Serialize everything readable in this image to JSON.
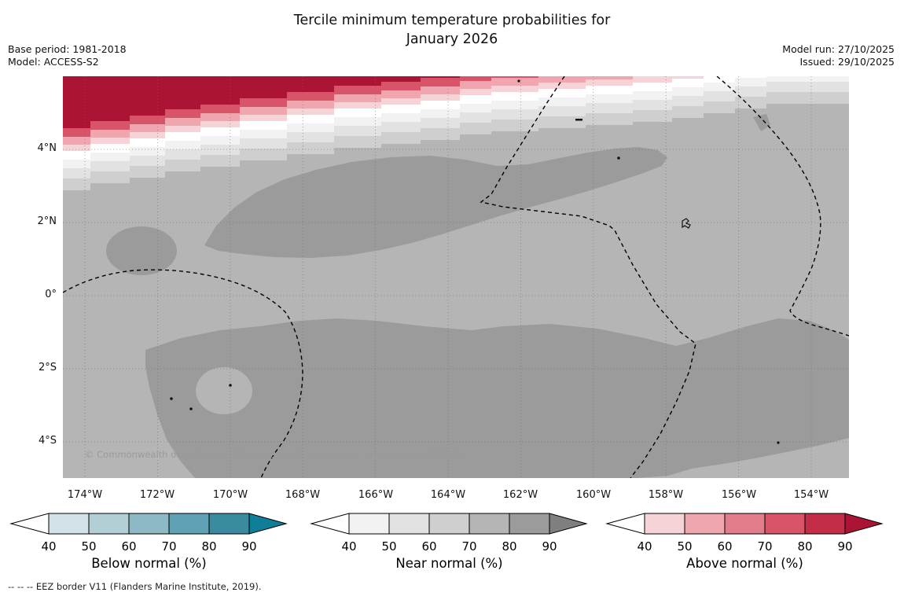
{
  "title": {
    "line1": "Tercile minimum temperature probabilities for",
    "line2": "January 2026"
  },
  "meta": {
    "base_period": "Base period: 1981-2018",
    "model": "Model: ACCESS-S2",
    "model_run": "Model run: 27/10/2025",
    "issued": "Issued: 29/10/2025"
  },
  "map": {
    "copyright": "© Commonwealth of Australia 2025, Bureau of Meteorology, supported by COSPPac",
    "lat_labels": [
      "4°N",
      "2°N",
      "0°",
      "2°S",
      "4°S"
    ],
    "lon_labels": [
      "174°W",
      "172°W",
      "170°W",
      "168°W",
      "166°W",
      "164°W",
      "162°W",
      "160°W",
      "158°W",
      "156°W",
      "154°W"
    ]
  },
  "colorbars": [
    {
      "name": "below-normal",
      "label": "Below normal (%)",
      "ticks": [
        "40",
        "50",
        "60",
        "70",
        "80",
        "90"
      ],
      "colors": [
        "#d3e2e6",
        "#b3cfd6",
        "#8cb9c5",
        "#60a2b3",
        "#3a8ba0"
      ],
      "arrow": "#0f7f99",
      "left_arrow": "#ffffff"
    },
    {
      "name": "near-normal",
      "label": "Near normal (%)",
      "ticks": [
        "40",
        "50",
        "60",
        "70",
        "80",
        "90"
      ],
      "colors": [
        "#f2f2f2",
        "#e2e2e2",
        "#cfcfcf",
        "#b5b5b5",
        "#9b9b9b"
      ],
      "arrow": "#7f7f7f",
      "left_arrow": "#ffffff"
    },
    {
      "name": "above-normal",
      "label": "Above normal (%)",
      "ticks": [
        "40",
        "50",
        "60",
        "70",
        "80",
        "90"
      ],
      "colors": [
        "#f6d3d6",
        "#efa6ae",
        "#e47d8b",
        "#d75469",
        "#c32d47"
      ],
      "arrow": "#ab1434",
      "left_arrow": "#ffffff"
    }
  ],
  "eez_note": "--  --  -- EEZ border V11 (Flanders Marine Institute, 2019).",
  "chart_data": {
    "type": "heatmap",
    "title": "Tercile minimum temperature probabilities for January 2026",
    "x_ticks": [
      "174°W",
      "172°W",
      "170°W",
      "168°W",
      "166°W",
      "164°W",
      "162°W",
      "160°W",
      "158°W",
      "156°W",
      "154°W"
    ],
    "y_ticks": [
      "4°N",
      "2°N",
      "0°",
      "2°S",
      "4°S"
    ],
    "legend_position": "bottom",
    "legends": [
      {
        "name": "Below normal (%)",
        "scale": [
          40,
          50,
          60,
          70,
          80,
          90
        ]
      },
      {
        "name": "Near normal (%)",
        "scale": [
          40,
          50,
          60,
          70,
          80,
          90
        ]
      },
      {
        "name": "Above normal (%)",
        "scale": [
          40,
          50,
          60,
          70,
          80,
          90
        ]
      }
    ],
    "description": "Filled tercile-probability field: above-normal probabilities (50 to >90%) form a band along the northern edge near 5-6N grading through white into near-normal grays; most of the domain shows near-normal probabilities of 40-70% with darker 60-70% patches; dashed lines are EEZ borders."
  }
}
